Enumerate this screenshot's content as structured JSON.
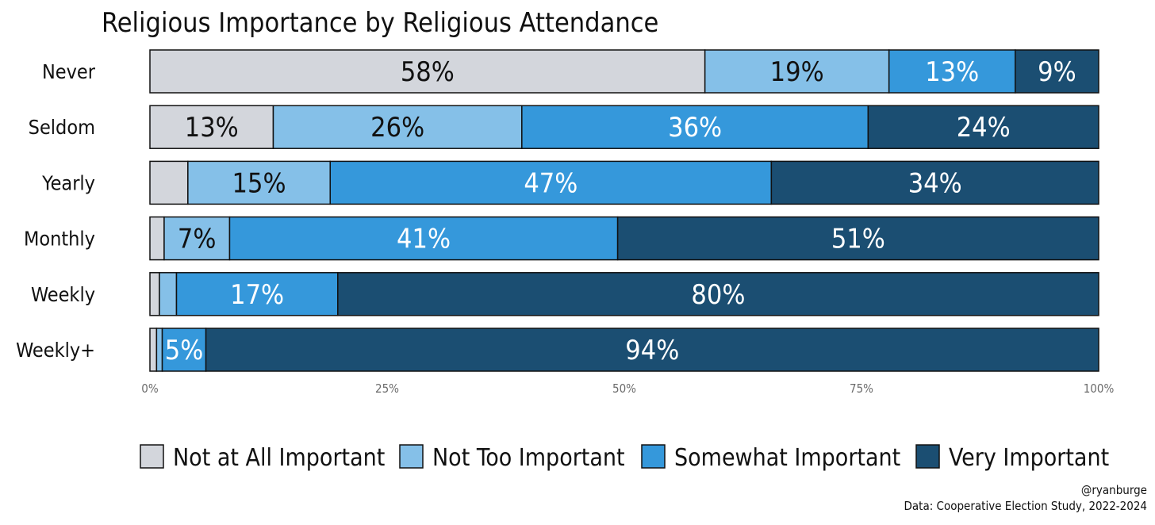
{
  "chart_data": {
    "type": "bar",
    "orientation": "horizontal",
    "stacked": true,
    "title": "Religious Importance by Religious Attendance",
    "categories": [
      "Never",
      "Seldom",
      "Yearly",
      "Monthly",
      "Weekly",
      "Weekly+"
    ],
    "series": [
      {
        "name": "Not at All Important",
        "color": "#d3d6dc",
        "values": [
          58.5,
          13,
          4,
          1.5,
          1,
          0.7
        ],
        "labels": [
          "58%",
          "13%",
          "",
          "",
          "",
          ""
        ],
        "label_color": "#111111"
      },
      {
        "name": "Not Too Important",
        "color": "#85c0e8",
        "values": [
          19.4,
          26.2,
          15,
          6.9,
          1.8,
          0.6
        ],
        "labels": [
          "19%",
          "26%",
          "15%",
          "7%",
          "",
          ""
        ],
        "label_color": "#111111"
      },
      {
        "name": "Somewhat Important",
        "color": "#3598db",
        "values": [
          13.3,
          36.5,
          46.5,
          40.9,
          17,
          4.6
        ],
        "labels": [
          "13%",
          "36%",
          "47%",
          "41%",
          "17%",
          "5%"
        ],
        "label_color": "#ffffff"
      },
      {
        "name": "Very Important",
        "color": "#1b4e72",
        "values": [
          8.8,
          24.3,
          34.5,
          50.7,
          80.2,
          94.1
        ],
        "labels": [
          "9%",
          "24%",
          "34%",
          "51%",
          "80%",
          "94%"
        ],
        "label_color": "#ffffff"
      }
    ],
    "x_ticks": [
      "0%",
      "25%",
      "50%",
      "75%",
      "100%"
    ],
    "xlim": [
      0,
      100
    ],
    "grid": false,
    "legend_position": "bottom"
  },
  "caption": {
    "author": "@ryanburge",
    "source": "Data: Cooperative Election Study, 2022-2024"
  }
}
